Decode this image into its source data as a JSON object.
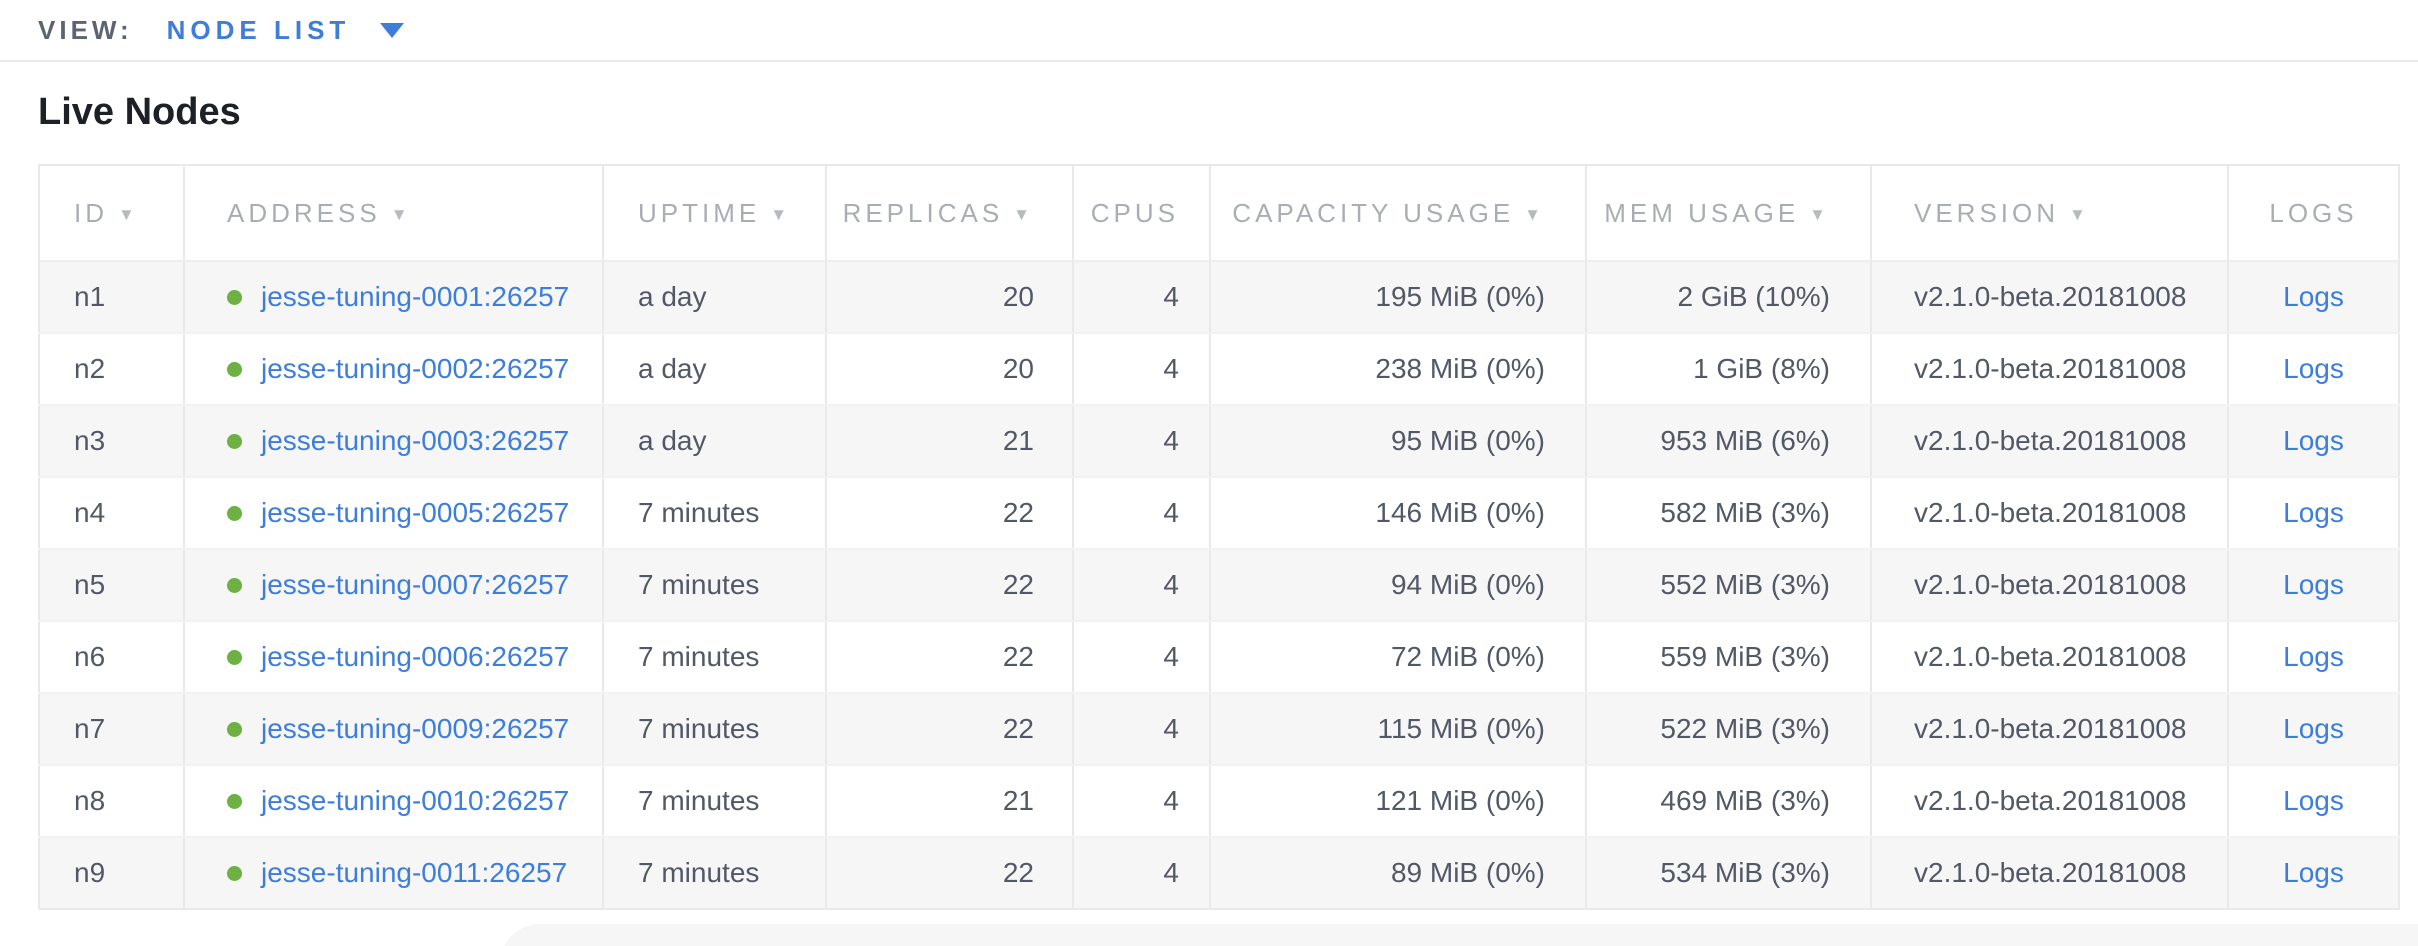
{
  "view_bar": {
    "label": "VIEW:",
    "selected": "NODE LIST"
  },
  "page": {
    "title": "Live Nodes"
  },
  "colors": {
    "link_blue": "#3e7dd8",
    "live_status_green": "#6db144",
    "header_gray": "#a9adb4",
    "cell_text": "#525866",
    "row_alt_background": "#f6f6f7"
  },
  "icons": {
    "view_dropdown": "chevron-down-icon",
    "sort_descending": "triangle-down-icon",
    "node_status": "green-dot-icon"
  },
  "table": {
    "logs_label": "Logs",
    "columns": [
      {
        "key": "id",
        "label": "ID",
        "sortable": true,
        "align": "left"
      },
      {
        "key": "address",
        "label": "ADDRESS",
        "sortable": true,
        "align": "left"
      },
      {
        "key": "uptime",
        "label": "UPTIME",
        "sortable": true,
        "align": "left"
      },
      {
        "key": "replicas",
        "label": "REPLICAS",
        "sortable": true,
        "align": "right"
      },
      {
        "key": "cpus",
        "label": "CPUS",
        "sortable": false,
        "align": "right"
      },
      {
        "key": "capacity",
        "label": "CAPACITY USAGE",
        "sortable": true,
        "align": "right"
      },
      {
        "key": "mem",
        "label": "MEM USAGE",
        "sortable": true,
        "align": "right"
      },
      {
        "key": "version",
        "label": "VERSION",
        "sortable": true,
        "align": "left"
      },
      {
        "key": "logs",
        "label": "LOGS",
        "sortable": false,
        "align": "center"
      }
    ],
    "rows": [
      {
        "id": "n1",
        "address": "jesse-tuning-0001:26257",
        "uptime": "a day",
        "replicas": "20",
        "cpus": "4",
        "capacity": "195 MiB (0%)",
        "mem": "2 GiB (10%)",
        "version": "v2.1.0-beta.20181008"
      },
      {
        "id": "n2",
        "address": "jesse-tuning-0002:26257",
        "uptime": "a day",
        "replicas": "20",
        "cpus": "4",
        "capacity": "238 MiB (0%)",
        "mem": "1 GiB (8%)",
        "version": "v2.1.0-beta.20181008"
      },
      {
        "id": "n3",
        "address": "jesse-tuning-0003:26257",
        "uptime": "a day",
        "replicas": "21",
        "cpus": "4",
        "capacity": "95 MiB (0%)",
        "mem": "953 MiB (6%)",
        "version": "v2.1.0-beta.20181008"
      },
      {
        "id": "n4",
        "address": "jesse-tuning-0005:26257",
        "uptime": "7 minutes",
        "replicas": "22",
        "cpus": "4",
        "capacity": "146 MiB (0%)",
        "mem": "582 MiB (3%)",
        "version": "v2.1.0-beta.20181008"
      },
      {
        "id": "n5",
        "address": "jesse-tuning-0007:26257",
        "uptime": "7 minutes",
        "replicas": "22",
        "cpus": "4",
        "capacity": "94 MiB (0%)",
        "mem": "552 MiB (3%)",
        "version": "v2.1.0-beta.20181008"
      },
      {
        "id": "n6",
        "address": "jesse-tuning-0006:26257",
        "uptime": "7 minutes",
        "replicas": "22",
        "cpus": "4",
        "capacity": "72 MiB (0%)",
        "mem": "559 MiB (3%)",
        "version": "v2.1.0-beta.20181008"
      },
      {
        "id": "n7",
        "address": "jesse-tuning-0009:26257",
        "uptime": "7 minutes",
        "replicas": "22",
        "cpus": "4",
        "capacity": "115 MiB (0%)",
        "mem": "522 MiB (3%)",
        "version": "v2.1.0-beta.20181008"
      },
      {
        "id": "n8",
        "address": "jesse-tuning-0010:26257",
        "uptime": "7 minutes",
        "replicas": "21",
        "cpus": "4",
        "capacity": "121 MiB (0%)",
        "mem": "469 MiB (3%)",
        "version": "v2.1.0-beta.20181008"
      },
      {
        "id": "n9",
        "address": "jesse-tuning-0011:26257",
        "uptime": "7 minutes",
        "replicas": "22",
        "cpus": "4",
        "capacity": "89 MiB (0%)",
        "mem": "534 MiB (3%)",
        "version": "v2.1.0-beta.20181008"
      }
    ]
  }
}
